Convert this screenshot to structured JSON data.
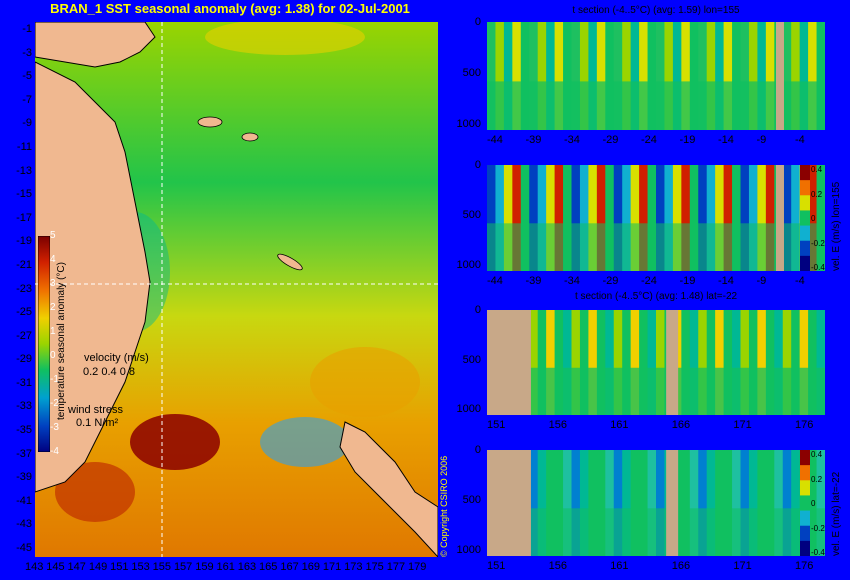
{
  "map": {
    "title": "BRAN_1 SST seasonal anomaly (avg: 1.38) for 02-Jul-2001",
    "lat_ticks": [
      "-1",
      "-3",
      "-5",
      "-7",
      "-9",
      "-11",
      "-13",
      "-15",
      "-17",
      "-19",
      "-21",
      "-23",
      "-25",
      "-27",
      "-29",
      "-31",
      "-33",
      "-35",
      "-37",
      "-39",
      "-41",
      "-43",
      "-45"
    ],
    "lon_ticks": [
      "143",
      "145",
      "147",
      "149",
      "151",
      "153",
      "155",
      "157",
      "159",
      "161",
      "163",
      "165",
      "167",
      "169",
      "171",
      "173",
      "175",
      "177",
      "179"
    ],
    "colorbar_label": "temperature seasonal anomaly (°C)",
    "colorbar_ticks": [
      "5",
      "4",
      "3",
      "2",
      "1",
      "0",
      "-1",
      "-2",
      "-3",
      "-4"
    ],
    "velocity_label": "velocity (m/s)",
    "velocity_scale": "0.2 0.4 0.8",
    "wind_label": "wind stress",
    "wind_scale": "0.1 N/m²",
    "copyright": "© Copyright CSIRO 2006",
    "crosshair": {
      "lon": 155,
      "lat": -22
    }
  },
  "panels": [
    {
      "title": "t section (-4..5°C) (avg: 1.59) lon=155",
      "x_ticks": [
        "-44",
        "-39",
        "-34",
        "-29",
        "-24",
        "-19",
        "-14",
        "-9",
        "-4"
      ],
      "y_ticks": [
        "0",
        "500",
        "1000"
      ],
      "side_label": "",
      "cbar_ticks": []
    },
    {
      "title": "",
      "x_ticks": [
        "-44",
        "-39",
        "-34",
        "-29",
        "-24",
        "-19",
        "-14",
        "-9",
        "-4"
      ],
      "y_ticks": [
        "0",
        "500",
        "1000"
      ],
      "side_label": "vel. E (m/s) lon=155",
      "cbar_ticks": [
        "0.4",
        "0.2",
        "0",
        "-0.2",
        "-0.4"
      ]
    },
    {
      "title": "t section (-4..5°C) (avg: 1.48) lat=-22",
      "x_ticks": [
        "151",
        "156",
        "161",
        "166",
        "171",
        "176"
      ],
      "y_ticks": [
        "0",
        "500",
        "1000"
      ],
      "side_label": "",
      "cbar_ticks": []
    },
    {
      "title": "",
      "x_ticks": [
        "151",
        "156",
        "161",
        "166",
        "171",
        "176"
      ],
      "y_ticks": [
        "0",
        "500",
        "1000"
      ],
      "side_label": "vel. E (m/s) lat=-22",
      "cbar_ticks": [
        "0.4",
        "0.2",
        "0",
        "-0.2",
        "-0.4"
      ]
    }
  ],
  "chart_data": [
    {
      "type": "heatmap",
      "title": "BRAN_1 SST seasonal anomaly (avg: 1.38) for 02-Jul-2001",
      "xlabel": "",
      "ylabel": "",
      "xlim": [
        143,
        180
      ],
      "ylim": [
        -45,
        0
      ],
      "colorbar": {
        "label": "temperature seasonal anomaly (°C)",
        "range": [
          -4,
          5
        ]
      }
    },
    {
      "type": "heatmap",
      "title": "t section (-4..5°C) (avg: 1.59) lon=155",
      "xlim": [
        -45,
        0
      ],
      "ylim": [
        1000,
        0
      ]
    },
    {
      "type": "heatmap",
      "title": "",
      "xlim": [
        -45,
        0
      ],
      "ylim": [
        1000,
        0
      ],
      "colorbar": {
        "label": "vel. E (m/s) lon=155",
        "range": [
          -0.4,
          0.4
        ]
      }
    },
    {
      "type": "heatmap",
      "title": "t section (-4..5°C) (avg: 1.48) lat=-22",
      "xlim": [
        150,
        180
      ],
      "ylim": [
        1000,
        0
      ]
    },
    {
      "type": "heatmap",
      "title": "",
      "xlim": [
        150,
        180
      ],
      "ylim": [
        1000,
        0
      ],
      "colorbar": {
        "label": "vel. E (m/s) lat=-22",
        "range": [
          -0.4,
          0.4
        ]
      }
    }
  ]
}
